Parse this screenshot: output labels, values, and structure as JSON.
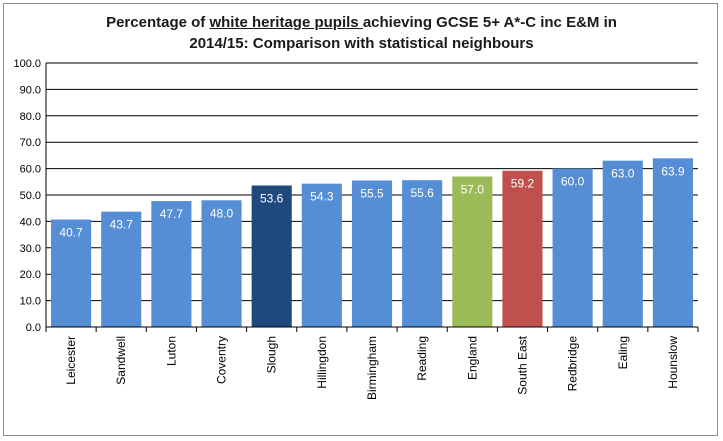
{
  "chart_data": {
    "type": "bar",
    "title": {
      "prefix": "Percentage of ",
      "underlined": "white heritage pupils ",
      "suffix": "achieving GCSE 5+ A*-C inc E&M in",
      "line2": "2014/15: Comparison with statistical neighbours"
    },
    "categories": [
      "Leicester",
      "Sandwell",
      "Luton",
      "Coventry",
      "Slough",
      "Hillingdon",
      "Birmingham",
      "Reading",
      "England",
      "South East",
      "Redbridge",
      "Ealing",
      "Hounslow"
    ],
    "values": [
      40.7,
      43.7,
      47.7,
      48.0,
      53.6,
      54.3,
      55.5,
      55.6,
      57.0,
      59.2,
      60.0,
      63.0,
      63.9
    ],
    "data_labels": [
      "40.7",
      "43.7",
      "47.7",
      "48.0",
      "53.6",
      "54.3",
      "55.5",
      "55.6",
      "57.0",
      "59.2",
      "60.0",
      "63.0",
      "63.9"
    ],
    "colors": [
      "#558ed5",
      "#558ed5",
      "#558ed5",
      "#558ed5",
      "#1f497d",
      "#558ed5",
      "#558ed5",
      "#558ed5",
      "#9bbb59",
      "#c0504d",
      "#558ed5",
      "#558ed5",
      "#558ed5"
    ],
    "ylim": [
      0,
      100
    ],
    "yticks": [
      0,
      10,
      20,
      30,
      40,
      50,
      60,
      70,
      80,
      90,
      100
    ],
    "ytick_labels": [
      "0.0",
      "10.0",
      "20.0",
      "30.0",
      "40.0",
      "50.0",
      "60.0",
      "70.0",
      "80.0",
      "90.0",
      "100.0"
    ],
    "grid": true,
    "xlabel": "",
    "ylabel": ""
  }
}
